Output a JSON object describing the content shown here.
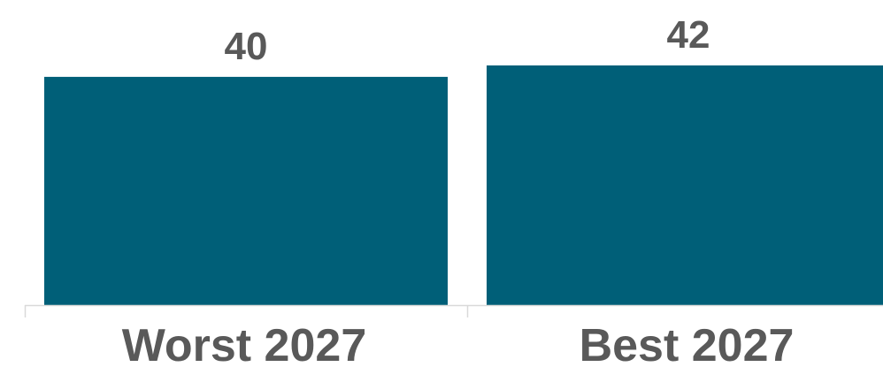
{
  "chart_data": {
    "type": "bar",
    "categories": [
      "Worst 2027",
      "Best 2027"
    ],
    "values": [
      40,
      42
    ],
    "title": "",
    "xlabel": "",
    "ylabel": "",
    "ylim": [
      0,
      42
    ],
    "grid": false,
    "colors": {
      "bar": "#005F78",
      "text": "#595959",
      "axis": "#D9D9D9"
    }
  }
}
